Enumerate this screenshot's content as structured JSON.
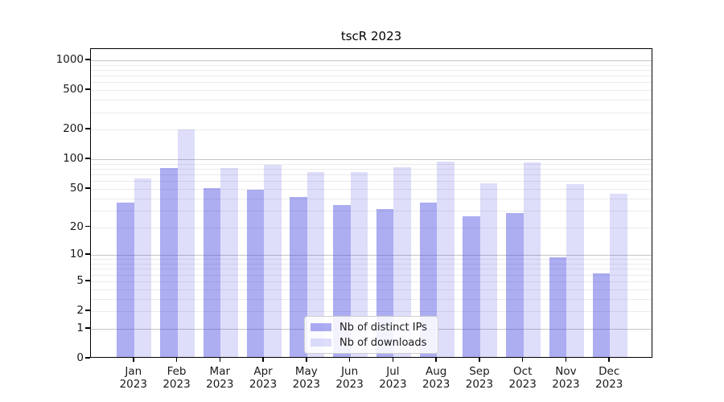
{
  "chart_data": {
    "type": "bar",
    "title": "tscR 2023",
    "categories": [
      "Jan",
      "Feb",
      "Mar",
      "Apr",
      "May",
      "Jun",
      "Jul",
      "Aug",
      "Sep",
      "Oct",
      "Nov",
      "Dec"
    ],
    "x_year": "2023",
    "series": [
      {
        "name": "Nb of distinct IPs",
        "color": "rgba(60,60,225,0.42)",
        "approx_hex": "#adadf3",
        "values": [
          35,
          78,
          49,
          47,
          40,
          33,
          30,
          35,
          25,
          27,
          9,
          6
        ]
      },
      {
        "name": "Nb of downloads",
        "color": "rgba(60,60,225,0.17)",
        "approx_hex": "#dedefa",
        "values": [
          62,
          192,
          78,
          85,
          72,
          72,
          80,
          91,
          55,
          90,
          54,
          43
        ]
      }
    ],
    "y_ticks": [
      0,
      1,
      2,
      5,
      10,
      20,
      50,
      100,
      200,
      500,
      1000
    ],
    "y_scale": "log2(1+v)",
    "ylim_top_value": 1300,
    "grid": true,
    "grid_major_values": [
      1,
      10,
      100,
      1000
    ],
    "grid_major_color": "#c6c6c6",
    "grid_minor_color": "#ebebeb",
    "axis_color": "#000000",
    "legend_position": "bottom-center",
    "background": "#ffffff"
  }
}
